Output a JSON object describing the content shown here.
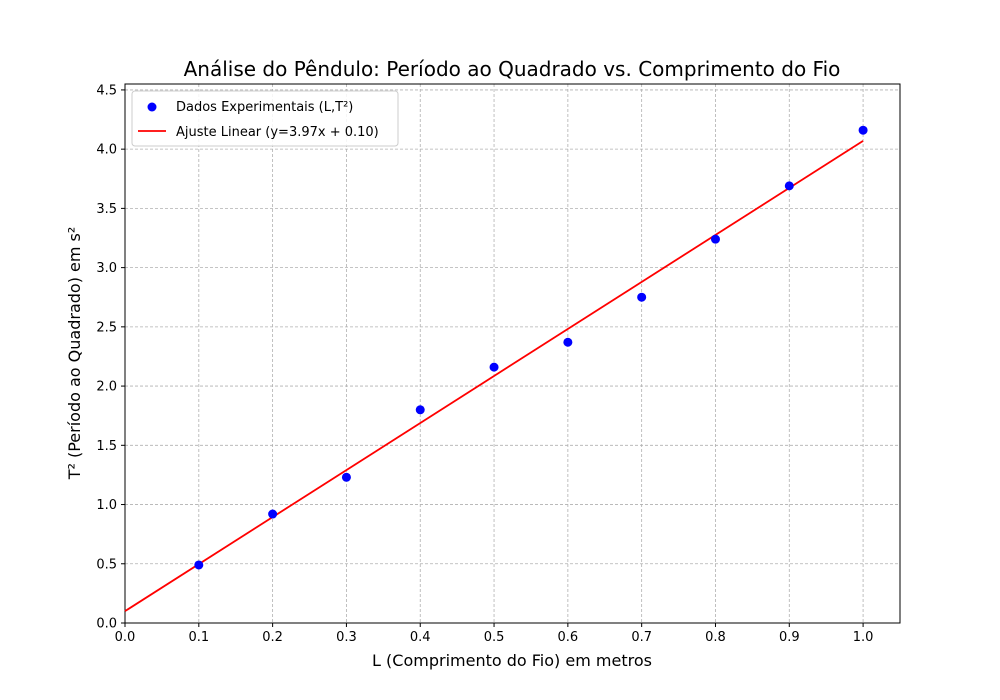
{
  "chart_data": {
    "type": "scatter",
    "title": "Análise do Pêndulo: Período ao Quadrado vs. Comprimento do Fio",
    "xlabel": "L (Comprimento do Fio) em metros",
    "ylabel": "T² (Período ao Quadrado) em s²",
    "xlim": [
      0.0,
      1.05
    ],
    "ylim": [
      0.0,
      4.55
    ],
    "xticks": [
      "0.0",
      "0.1",
      "0.2",
      "0.3",
      "0.4",
      "0.5",
      "0.6",
      "0.7",
      "0.8",
      "0.9",
      "1.0"
    ],
    "yticks": [
      "0.0",
      "0.5",
      "1.0",
      "1.5",
      "2.0",
      "2.5",
      "3.0",
      "3.5",
      "4.0",
      "4.5"
    ],
    "grid": true,
    "legend_position": "top-left",
    "series": [
      {
        "name": "Dados Experimentais (L,T²)",
        "kind": "scatter",
        "color": "#0000ff",
        "x": [
          0.1,
          0.2,
          0.3,
          0.4,
          0.5,
          0.6,
          0.7,
          0.8,
          0.9,
          1.0
        ],
        "y": [
          0.49,
          0.92,
          1.23,
          1.8,
          2.16,
          2.37,
          2.75,
          3.24,
          3.69,
          4.16
        ]
      },
      {
        "name": "Ajuste Linear (y=3.97x + 0.10)",
        "kind": "line",
        "color": "#ff0000",
        "x": [
          0.0,
          1.0
        ],
        "y": [
          0.1,
          4.07
        ]
      }
    ]
  }
}
